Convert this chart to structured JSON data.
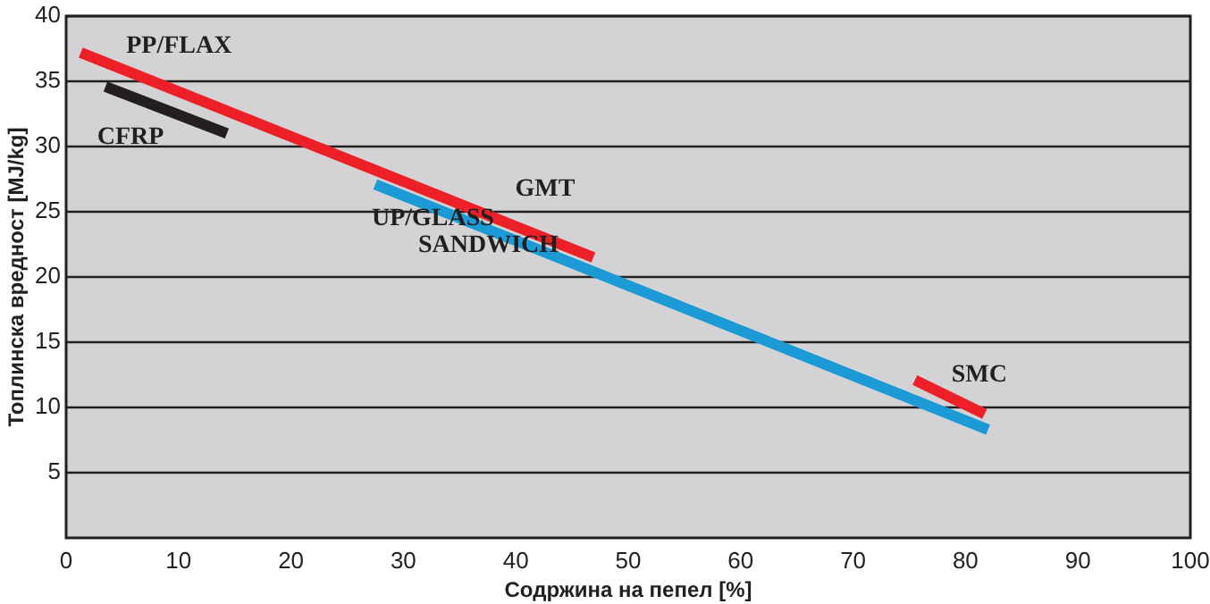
{
  "chart_data": {
    "type": "line",
    "xlabel": "Содржина на пепел [%]",
    "ylabel": "Топлинска вредност [MJ/kg]",
    "xlim": [
      0,
      100
    ],
    "xticks": [
      0,
      10,
      20,
      30,
      40,
      50,
      60,
      70,
      80,
      90,
      100
    ],
    "ylim": [
      0,
      40
    ],
    "yticks": [
      5,
      10,
      15,
      20,
      25,
      30,
      35,
      40
    ],
    "grid": "y",
    "marker": "none",
    "line_style": "solid",
    "series": [
      {
        "name": "PP/FLAX",
        "color": "#ee2027",
        "x": [
          1.3,
          46.9
        ],
        "values": [
          37.2,
          21.5
        ]
      },
      {
        "name": "CFRP",
        "color": "#231f20",
        "x": [
          3.5,
          14.3
        ],
        "values": [
          34.6,
          31.0
        ]
      },
      {
        "name": "UP/GLASS\nSANDWICH",
        "color": "#1b9ad6",
        "x": [
          27.5,
          82.0
        ],
        "values": [
          27.1,
          8.3
        ]
      },
      {
        "name": "SMC",
        "color": "#ee2027",
        "x": [
          75.5,
          81.7
        ],
        "values": [
          12.1,
          9.5
        ]
      }
    ],
    "annotations": [
      {
        "text": "GMT",
        "x": 46.9,
        "y": 21.5
      }
    ]
  }
}
